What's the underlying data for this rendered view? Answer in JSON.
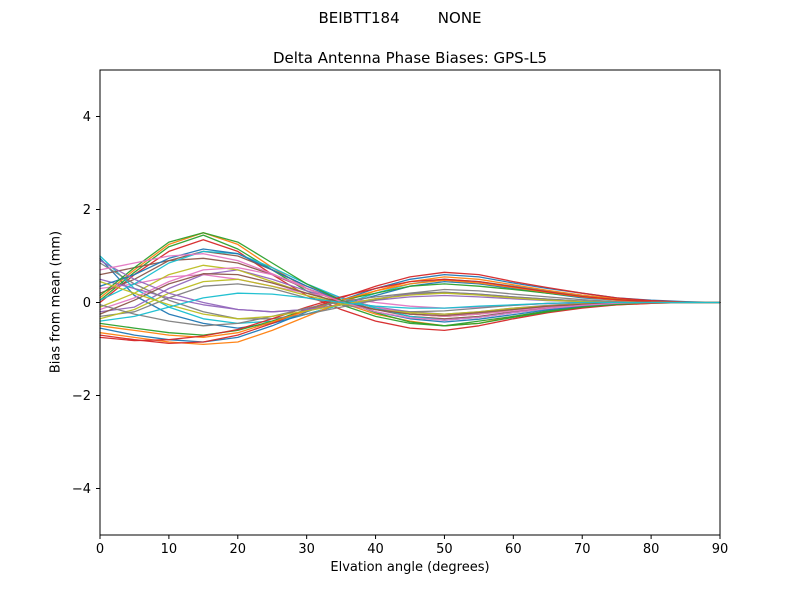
{
  "header": {
    "title": "BEIBTT184        NONE"
  },
  "chart_data": {
    "type": "line",
    "title": "Delta Antenna Phase Biases: GPS-L5",
    "xlabel": "Elvation angle (degrees)",
    "ylabel": "Bias from mean (mm)",
    "xlim": [
      0,
      90
    ],
    "ylim": [
      -5,
      5
    ],
    "xticks": [
      0,
      10,
      20,
      30,
      40,
      50,
      60,
      70,
      80,
      90
    ],
    "yticks": [
      -4,
      -2,
      0,
      2,
      4
    ],
    "grid": false,
    "legend": "none",
    "x": [
      0,
      5,
      10,
      15,
      20,
      25,
      30,
      35,
      40,
      45,
      50,
      55,
      60,
      65,
      70,
      75,
      80,
      85,
      90
    ],
    "series": [
      {
        "color": "#1f77b4",
        "values": [
          0.95,
          0.15,
          -0.25,
          -0.45,
          -0.55,
          -0.45,
          -0.25,
          -0.05,
          0.15,
          0.35,
          0.45,
          0.4,
          0.3,
          0.2,
          0.1,
          0.05,
          0.02,
          0.01,
          0
        ]
      },
      {
        "color": "#ff7f0e",
        "values": [
          0.1,
          0.7,
          1.25,
          1.5,
          1.25,
          0.75,
          0.3,
          0,
          -0.25,
          -0.4,
          -0.5,
          -0.45,
          -0.3,
          -0.2,
          -0.1,
          -0.05,
          -0.02,
          0,
          0
        ]
      },
      {
        "color": "#2ca02c",
        "values": [
          0.05,
          0.65,
          1.2,
          1.45,
          1.15,
          0.7,
          0.25,
          -0.05,
          -0.3,
          -0.45,
          -0.5,
          -0.4,
          -0.3,
          -0.18,
          -0.1,
          -0.04,
          0,
          0,
          0
        ]
      },
      {
        "color": "#d62728",
        "values": [
          0,
          0.6,
          1.1,
          1.35,
          1.1,
          0.6,
          0.15,
          -0.15,
          -0.4,
          -0.55,
          -0.6,
          -0.5,
          -0.35,
          -0.22,
          -0.12,
          -0.05,
          -0.02,
          0,
          0
        ]
      },
      {
        "color": "#9467bd",
        "values": [
          -0.2,
          -0.1,
          0.3,
          0.6,
          0.7,
          0.5,
          0.25,
          0.05,
          -0.1,
          -0.2,
          -0.25,
          -0.2,
          -0.12,
          -0.06,
          -0.02,
          0,
          0,
          0,
          0
        ]
      },
      {
        "color": "#8c564b",
        "values": [
          0.2,
          0.5,
          0.9,
          1.1,
          1.0,
          0.7,
          0.35,
          0.1,
          -0.1,
          -0.25,
          -0.3,
          -0.25,
          -0.15,
          -0.08,
          -0.03,
          0,
          0,
          0,
          0
        ]
      },
      {
        "color": "#e377c2",
        "values": [
          0.3,
          0.4,
          0.55,
          0.6,
          0.5,
          0.35,
          0.2,
          0.1,
          0,
          -0.08,
          -0.12,
          -0.1,
          -0.06,
          -0.02,
          0,
          0.02,
          0.02,
          0,
          0
        ]
      },
      {
        "color": "#7f7f7f",
        "values": [
          -0.3,
          -0.2,
          0.1,
          0.35,
          0.4,
          0.3,
          0.1,
          -0.05,
          -0.15,
          -0.2,
          -0.18,
          -0.12,
          -0.06,
          -0.02,
          0,
          0,
          0,
          0,
          0
        ]
      },
      {
        "color": "#bcbd22",
        "values": [
          -0.1,
          0.2,
          0.6,
          0.8,
          0.7,
          0.45,
          0.2,
          0,
          -0.15,
          -0.25,
          -0.3,
          -0.25,
          -0.15,
          -0.1,
          -0.05,
          -0.02,
          0,
          0,
          0
        ]
      },
      {
        "color": "#17becf",
        "values": [
          1.0,
          0.3,
          -0.1,
          -0.35,
          -0.45,
          -0.4,
          -0.25,
          -0.05,
          0.2,
          0.4,
          0.5,
          0.45,
          0.35,
          0.25,
          0.15,
          0.08,
          0.03,
          0,
          0
        ]
      },
      {
        "color": "#1f77b4",
        "values": [
          -0.55,
          -0.7,
          -0.8,
          -0.85,
          -0.75,
          -0.5,
          -0.2,
          0.05,
          0.3,
          0.5,
          0.6,
          0.55,
          0.42,
          0.3,
          0.2,
          0.1,
          0.05,
          0.02,
          0
        ]
      },
      {
        "color": "#ff7f0e",
        "values": [
          -0.65,
          -0.75,
          -0.85,
          -0.9,
          -0.85,
          -0.6,
          -0.3,
          0,
          0.25,
          0.45,
          0.55,
          0.5,
          0.38,
          0.26,
          0.16,
          0.08,
          0.03,
          0,
          0
        ]
      },
      {
        "color": "#2ca02c",
        "values": [
          -0.45,
          -0.55,
          -0.65,
          -0.7,
          -0.6,
          -0.4,
          -0.15,
          0.05,
          0.2,
          0.35,
          0.4,
          0.35,
          0.28,
          0.2,
          0.12,
          0.06,
          0.02,
          0,
          0
        ]
      },
      {
        "color": "#d62728",
        "values": [
          -0.7,
          -0.8,
          -0.88,
          -0.85,
          -0.7,
          -0.45,
          -0.15,
          0.1,
          0.35,
          0.55,
          0.65,
          0.6,
          0.45,
          0.32,
          0.2,
          0.1,
          0.04,
          0.01,
          0
        ]
      },
      {
        "color": "#9467bd",
        "values": [
          0.5,
          0.3,
          0.1,
          -0.05,
          -0.15,
          -0.2,
          -0.15,
          -0.05,
          0.05,
          0.12,
          0.15,
          0.12,
          0.08,
          0.04,
          0.02,
          0,
          0,
          0,
          0
        ]
      },
      {
        "color": "#8c564b",
        "values": [
          0.6,
          0.75,
          0.9,
          0.95,
          0.85,
          0.6,
          0.3,
          0.05,
          -0.15,
          -0.3,
          -0.35,
          -0.3,
          -0.2,
          -0.12,
          -0.06,
          -0.02,
          0,
          0,
          0
        ]
      },
      {
        "color": "#e377c2",
        "values": [
          -0.15,
          0.1,
          0.45,
          0.7,
          0.75,
          0.6,
          0.35,
          0.1,
          -0.1,
          -0.25,
          -0.3,
          -0.25,
          -0.18,
          -0.1,
          -0.05,
          -0.02,
          0,
          0,
          0
        ]
      },
      {
        "color": "#7f7f7f",
        "values": [
          0.85,
          0.4,
          0.05,
          -0.2,
          -0.35,
          -0.35,
          -0.25,
          -0.1,
          0.05,
          0.2,
          0.28,
          0.25,
          0.18,
          0.12,
          0.06,
          0.02,
          0,
          0,
          0
        ]
      },
      {
        "color": "#bcbd22",
        "values": [
          -0.35,
          -0.15,
          0.2,
          0.45,
          0.5,
          0.35,
          0.15,
          -0.02,
          -0.15,
          -0.22,
          -0.25,
          -0.2,
          -0.12,
          -0.07,
          -0.03,
          0,
          0,
          0,
          0
        ]
      },
      {
        "color": "#17becf",
        "values": [
          0.05,
          0.4,
          0.85,
          1.1,
          1.05,
          0.75,
          0.4,
          0.1,
          -0.12,
          -0.3,
          -0.38,
          -0.32,
          -0.22,
          -0.14,
          -0.07,
          -0.02,
          0,
          0,
          0
        ]
      },
      {
        "color": "#1f77b4",
        "values": [
          0.35,
          0.6,
          0.95,
          1.15,
          1.05,
          0.7,
          0.35,
          0.05,
          -0.2,
          -0.35,
          -0.42,
          -0.36,
          -0.26,
          -0.16,
          -0.08,
          -0.03,
          0,
          0,
          0
        ]
      },
      {
        "color": "#ff7f0e",
        "values": [
          -0.5,
          -0.6,
          -0.7,
          -0.75,
          -0.65,
          -0.42,
          -0.18,
          0.05,
          0.25,
          0.4,
          0.48,
          0.42,
          0.32,
          0.22,
          0.12,
          0.05,
          0.02,
          0,
          0
        ]
      },
      {
        "color": "#2ca02c",
        "values": [
          0.15,
          0.75,
          1.3,
          1.5,
          1.3,
          0.85,
          0.4,
          0.05,
          -0.22,
          -0.42,
          -0.5,
          -0.45,
          -0.32,
          -0.2,
          -0.1,
          -0.04,
          0,
          0,
          0
        ]
      },
      {
        "color": "#d62728",
        "values": [
          -0.75,
          -0.82,
          -0.8,
          -0.72,
          -0.58,
          -0.35,
          -0.1,
          0.12,
          0.3,
          0.45,
          0.5,
          0.45,
          0.34,
          0.23,
          0.13,
          0.06,
          0.02,
          0,
          0
        ]
      },
      {
        "color": "#9467bd",
        "values": [
          0.9,
          0.5,
          0.2,
          0,
          -0.15,
          -0.2,
          -0.15,
          -0.05,
          0.08,
          0.18,
          0.22,
          0.18,
          0.12,
          0.07,
          0.03,
          0,
          0,
          0,
          0
        ]
      },
      {
        "color": "#8c564b",
        "values": [
          -0.25,
          0.05,
          0.4,
          0.62,
          0.6,
          0.42,
          0.2,
          0,
          -0.15,
          -0.25,
          -0.28,
          -0.22,
          -0.15,
          -0.08,
          -0.04,
          0,
          0,
          0,
          0
        ]
      },
      {
        "color": "#e377c2",
        "values": [
          0.7,
          0.85,
          1.0,
          1.05,
          0.9,
          0.62,
          0.3,
          0.02,
          -0.2,
          -0.33,
          -0.38,
          -0.32,
          -0.22,
          -0.13,
          -0.06,
          -0.02,
          0,
          0,
          0
        ]
      },
      {
        "color": "#7f7f7f",
        "values": [
          -0.05,
          -0.25,
          -0.4,
          -0.5,
          -0.45,
          -0.3,
          -0.12,
          0.02,
          0.12,
          0.2,
          0.22,
          0.18,
          0.12,
          0.07,
          0.03,
          0,
          0,
          0,
          0
        ]
      },
      {
        "color": "#bcbd22",
        "values": [
          0.45,
          0.2,
          -0.05,
          -0.25,
          -0.35,
          -0.3,
          -0.18,
          -0.05,
          0.08,
          0.16,
          0.2,
          0.16,
          0.1,
          0.05,
          0.02,
          0,
          0,
          0,
          0
        ]
      },
      {
        "color": "#17becf",
        "values": [
          -0.4,
          -0.3,
          -0.1,
          0.1,
          0.2,
          0.18,
          0.1,
          0,
          -0.08,
          -0.12,
          -0.12,
          -0.08,
          -0.05,
          -0.02,
          0,
          0,
          0,
          0,
          0
        ]
      }
    ]
  }
}
